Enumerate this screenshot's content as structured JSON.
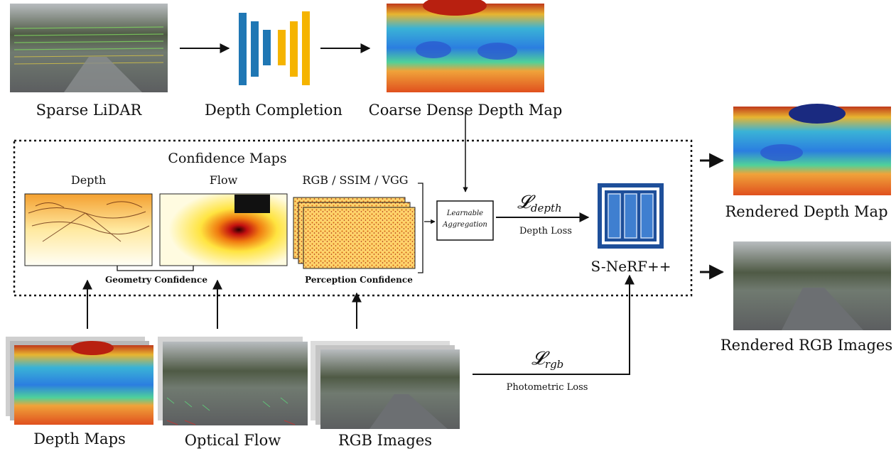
{
  "top_row": {
    "sparse_lidar_label": "Sparse LiDAR",
    "depth_completion_label": "Depth Completion",
    "coarse_depth_label": "Coarse Dense Depth Map"
  },
  "confidence_box": {
    "title": "Confidence Maps",
    "depth_label": "Depth",
    "flow_label": "Flow",
    "rgb_label": "RGB / SSIM / VGG",
    "geometry_confidence": "Geometry Confidence",
    "perception_confidence": "Perception Confidence",
    "aggregation_line1": "Learnable",
    "aggregation_line2": "Aggregation"
  },
  "losses": {
    "depth_symbol": "𝓛",
    "depth_sub": "depth",
    "depth_loss_label": "Depth Loss",
    "rgb_symbol": "𝓛",
    "rgb_sub": "rgb",
    "photometric_loss_label": "Photometric Loss"
  },
  "model": {
    "name": "S-NeRF++"
  },
  "outputs": {
    "rendered_depth_label": "Rendered Depth Map",
    "rendered_rgb_label": "Rendered RGB Images"
  },
  "bottom_row": {
    "depth_maps_label": "Depth Maps",
    "optical_flow_label": "Optical Flow",
    "rgb_images_label": "RGB Images"
  },
  "colors": {
    "network_blue": "#1f77b4",
    "network_orange": "#f5b400",
    "model_blue": "#1e4f9a",
    "model_fill": "#3f7fd0"
  }
}
